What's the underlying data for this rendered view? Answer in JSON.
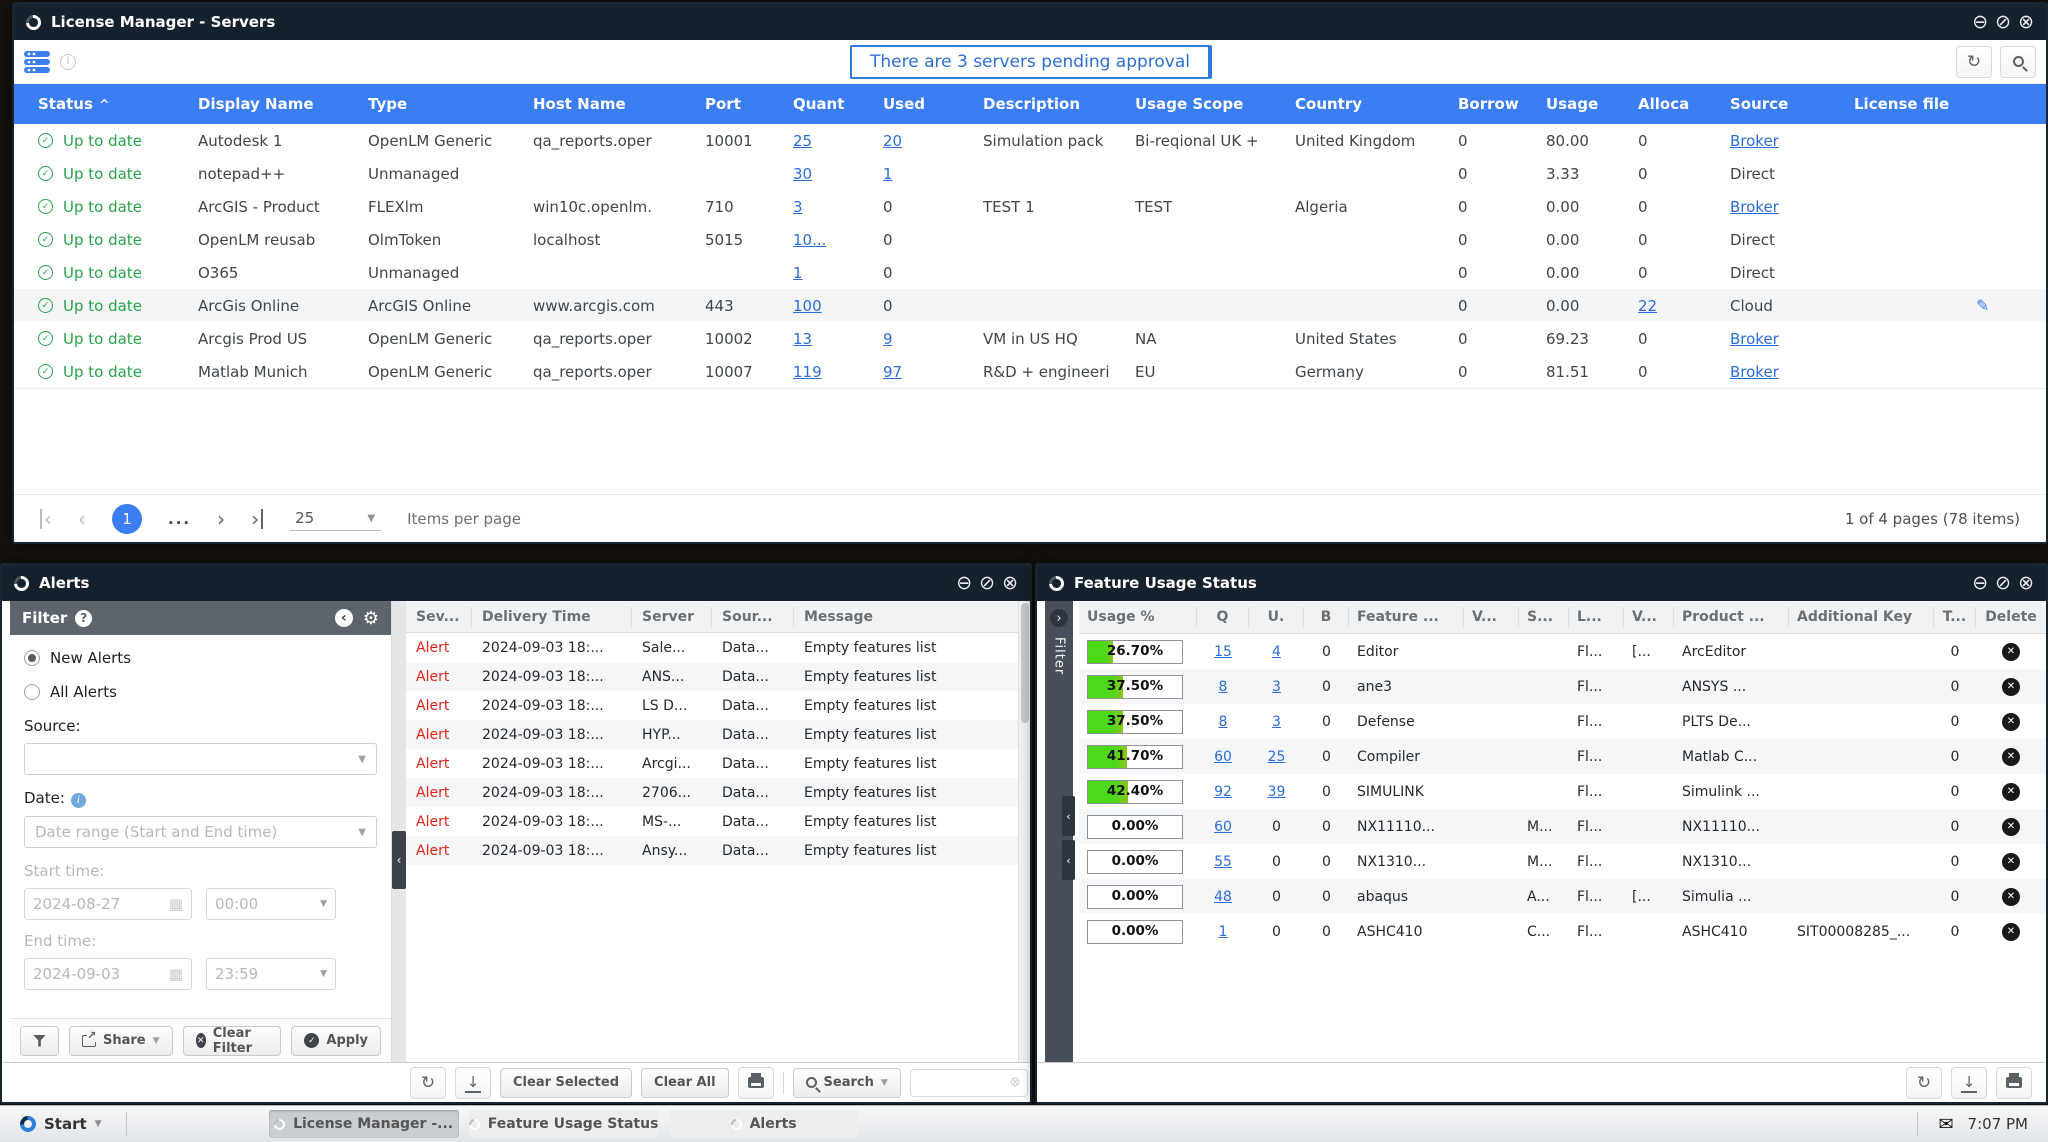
{
  "colors": {
    "accent": "#3b7df2",
    "link": "#2b6cd9",
    "ok_green": "#27a348",
    "alert_red": "#e2231a",
    "bar_green": "#4ed81a"
  },
  "server_window": {
    "title": "License Manager - Servers",
    "banner": "There are 3 servers pending approval",
    "columns": [
      "Status",
      "Display Name",
      "Type",
      "Host Name",
      "Port",
      "Quant",
      "Used",
      "Description",
      "Usage Scope",
      "Country",
      "Borrow",
      "Usage",
      "Alloca",
      "Source",
      "License file"
    ],
    "rows": [
      {
        "status": "Up to date",
        "display": "Autodesk 1",
        "type": "OpenLM Generic",
        "host": "qa_reports.oper",
        "port": "10001",
        "quant": "25",
        "quant_link": true,
        "used": "20",
        "used_link": true,
        "desc": "Simulation pack",
        "scope": "Bi-reqional UK +",
        "country": "United Kingdom",
        "borrow": "0",
        "usage": "80.00",
        "alloca": "0",
        "alloca_link": false,
        "source": "Broker",
        "source_link": true,
        "edit": false,
        "highlight": false
      },
      {
        "status": "Up to date",
        "display": "notepad++",
        "type": "Unmanaged",
        "host": "",
        "port": "",
        "quant": "30",
        "quant_link": true,
        "used": "1",
        "used_link": true,
        "desc": "",
        "scope": "",
        "country": "",
        "borrow": "0",
        "usage": "3.33",
        "alloca": "0",
        "alloca_link": false,
        "source": "Direct",
        "source_link": false,
        "edit": false,
        "highlight": false
      },
      {
        "status": "Up to date",
        "display": "ArcGIS - Product",
        "type": "FLEXlm",
        "host": "win10c.openlm.",
        "port": "710",
        "quant": "3",
        "quant_link": true,
        "used": "0",
        "used_link": false,
        "desc": "TEST 1",
        "scope": "TEST",
        "country": "Algeria",
        "borrow": "0",
        "usage": "0.00",
        "alloca": "0",
        "alloca_link": false,
        "source": "Broker",
        "source_link": true,
        "edit": false,
        "highlight": false
      },
      {
        "status": "Up to date",
        "display": "OpenLM reusab",
        "type": "OlmToken",
        "host": "localhost",
        "port": "5015",
        "quant": "10...",
        "quant_link": true,
        "used": "0",
        "used_link": false,
        "desc": "",
        "scope": "",
        "country": "",
        "borrow": "0",
        "usage": "0.00",
        "alloca": "0",
        "alloca_link": false,
        "source": "Direct",
        "source_link": false,
        "edit": false,
        "highlight": false
      },
      {
        "status": "Up to date",
        "display": "O365",
        "type": "Unmanaged",
        "host": "",
        "port": "",
        "quant": "1",
        "quant_link": true,
        "used": "0",
        "used_link": false,
        "desc": "",
        "scope": "",
        "country": "",
        "borrow": "0",
        "usage": "0.00",
        "alloca": "0",
        "alloca_link": false,
        "source": "Direct",
        "source_link": false,
        "edit": false,
        "highlight": false
      },
      {
        "status": "Up to date",
        "display": "ArcGis Online",
        "type": "ArcGIS Online",
        "host": "www.arcgis.com",
        "port": "443",
        "quant": "100",
        "quant_link": true,
        "used": "0",
        "used_link": false,
        "desc": "",
        "scope": "",
        "country": "",
        "borrow": "0",
        "usage": "0.00",
        "alloca": "22",
        "alloca_link": true,
        "source": "Cloud",
        "source_link": false,
        "edit": true,
        "highlight": true
      },
      {
        "status": "Up to date",
        "display": "Arcgis Prod US",
        "type": "OpenLM Generic",
        "host": "qa_reports.oper",
        "port": "10002",
        "quant": "13",
        "quant_link": true,
        "used": "9",
        "used_link": true,
        "desc": "VM in US HQ",
        "scope": "NA",
        "country": "United States",
        "borrow": "0",
        "usage": "69.23",
        "alloca": "0",
        "alloca_link": false,
        "source": "Broker",
        "source_link": true,
        "edit": false,
        "highlight": false
      },
      {
        "status": "Up to date",
        "display": "Matlab Munich",
        "type": "OpenLM Generic",
        "host": "qa_reports.oper",
        "port": "10007",
        "quant": "119",
        "quant_link": true,
        "used": "97",
        "used_link": true,
        "desc": "R&D + engineeri",
        "scope": "EU",
        "country": "Germany",
        "borrow": "0",
        "usage": "81.51",
        "alloca": "0",
        "alloca_link": false,
        "source": "Broker",
        "source_link": true,
        "edit": false,
        "highlight": false
      }
    ],
    "pagination": {
      "page": "1",
      "ellipsis": "...",
      "per_page": "25",
      "per_page_label": "Items per page",
      "summary": "1 of 4 pages (78 items)"
    }
  },
  "alerts_window": {
    "title": "Alerts",
    "filter": {
      "title": "Filter",
      "radio_new": "New Alerts",
      "radio_all": "All Alerts",
      "source_label": "Source:",
      "date_label": "Date:",
      "date_mode": "Date range (Start and End time)",
      "start_label": "Start time:",
      "start_date": "2024-08-27",
      "start_time": "00:00",
      "end_label": "End time:",
      "end_date": "2024-09-03",
      "end_time": "23:59",
      "share": "Share",
      "clear_filter": "Clear Filter",
      "apply": "Apply"
    },
    "table": {
      "columns": [
        "Sev...",
        "Delivery Time",
        "Server",
        "Sour...",
        "Message"
      ],
      "rows": [
        {
          "sev": "Alert",
          "time": "2024-09-03 18:...",
          "server": "Sale...",
          "source": "Data...",
          "message": "Empty features list"
        },
        {
          "sev": "Alert",
          "time": "2024-09-03 18:...",
          "server": "ANS...",
          "source": "Data...",
          "message": "Empty features list"
        },
        {
          "sev": "Alert",
          "time": "2024-09-03 18:...",
          "server": "LS D...",
          "source": "Data...",
          "message": "Empty features list"
        },
        {
          "sev": "Alert",
          "time": "2024-09-03 18:...",
          "server": "HYP...",
          "source": "Data...",
          "message": "Empty features list"
        },
        {
          "sev": "Alert",
          "time": "2024-09-03 18:...",
          "server": "Arcgi...",
          "source": "Data...",
          "message": "Empty features list"
        },
        {
          "sev": "Alert",
          "time": "2024-09-03 18:...",
          "server": "2706...",
          "source": "Data...",
          "message": "Empty features list"
        },
        {
          "sev": "Alert",
          "time": "2024-09-03 18:...",
          "server": "MS-...",
          "source": "Data...",
          "message": "Empty features list"
        },
        {
          "sev": "Alert",
          "time": "2024-09-03 18:...",
          "server": "Ansy...",
          "source": "Data...",
          "message": "Empty features list"
        }
      ]
    },
    "toolbar": {
      "clear_selected": "Clear Selected",
      "clear_all": "Clear All",
      "search": "Search"
    }
  },
  "feature_window": {
    "title": "Feature Usage Status",
    "filter_tab": "Filter",
    "table": {
      "columns": [
        "Usage %",
        "Q",
        "U.",
        "B",
        "Feature ...",
        "V...",
        "S...",
        "L...",
        "V...",
        "Product ...",
        "Additional Key",
        "T...",
        "Delete"
      ],
      "rows": [
        {
          "usage": "26.70%",
          "pct": 26.7,
          "q": "15",
          "q_link": true,
          "u": "4",
          "u_link": true,
          "b": "0",
          "feature": "Editor",
          "v1": "",
          "s": "",
          "l": "Fl...",
          "v2": "[...",
          "product": "ArcEditor",
          "addkey": "",
          "t": "0"
        },
        {
          "usage": "37.50%",
          "pct": 37.5,
          "q": "8",
          "q_link": true,
          "u": "3",
          "u_link": true,
          "b": "0",
          "feature": "ane3",
          "v1": "",
          "s": "",
          "l": "Fl...",
          "v2": "",
          "product": "ANSYS ...",
          "addkey": "",
          "t": "0"
        },
        {
          "usage": "37.50%",
          "pct": 37.5,
          "q": "8",
          "q_link": true,
          "u": "3",
          "u_link": true,
          "b": "0",
          "feature": "Defense",
          "v1": "",
          "s": "",
          "l": "Fl...",
          "v2": "",
          "product": "PLTS De...",
          "addkey": "",
          "t": "0"
        },
        {
          "usage": "41.70%",
          "pct": 41.7,
          "q": "60",
          "q_link": true,
          "u": "25",
          "u_link": true,
          "b": "0",
          "feature": "Compiler",
          "v1": "",
          "s": "",
          "l": "Fl...",
          "v2": "",
          "product": "Matlab C...",
          "addkey": "",
          "t": "0"
        },
        {
          "usage": "42.40%",
          "pct": 42.4,
          "q": "92",
          "q_link": true,
          "u": "39",
          "u_link": true,
          "b": "0",
          "feature": "SIMULINK",
          "v1": "",
          "s": "",
          "l": "Fl...",
          "v2": "",
          "product": "Simulink ...",
          "addkey": "",
          "t": "0"
        },
        {
          "usage": "0.00%",
          "pct": 0,
          "q": "60",
          "q_link": true,
          "u": "0",
          "u_link": false,
          "b": "0",
          "feature": "NX11110...",
          "v1": "",
          "s": "M...",
          "l": "Fl...",
          "v2": "",
          "product": "NX11110...",
          "addkey": "",
          "t": "0"
        },
        {
          "usage": "0.00%",
          "pct": 0,
          "q": "55",
          "q_link": true,
          "u": "0",
          "u_link": false,
          "b": "0",
          "feature": "NX1310...",
          "v1": "",
          "s": "M...",
          "l": "Fl...",
          "v2": "",
          "product": "NX1310...",
          "addkey": "",
          "t": "0"
        },
        {
          "usage": "0.00%",
          "pct": 0,
          "q": "48",
          "q_link": true,
          "u": "0",
          "u_link": false,
          "b": "0",
          "feature": "abaqus",
          "v1": "",
          "s": "A...",
          "l": "Fl...",
          "v2": "[...",
          "product": "Simulia ...",
          "addkey": "",
          "t": "0"
        },
        {
          "usage": "0.00%",
          "pct": 0,
          "q": "1",
          "q_link": true,
          "u": "0",
          "u_link": false,
          "b": "0",
          "feature": "ASHC410",
          "v1": "",
          "s": "C...",
          "l": "Fl...",
          "v2": "",
          "product": "ASHC410",
          "addkey": "SIT00008285_...",
          "t": "0"
        }
      ]
    }
  },
  "taskbar": {
    "start": "Start",
    "tasks": [
      {
        "label": "License Manager -...",
        "active": true
      },
      {
        "label": "Feature Usage Status",
        "active": false
      },
      {
        "label": "Alerts",
        "active": false
      }
    ],
    "time": "7:07 PM"
  }
}
